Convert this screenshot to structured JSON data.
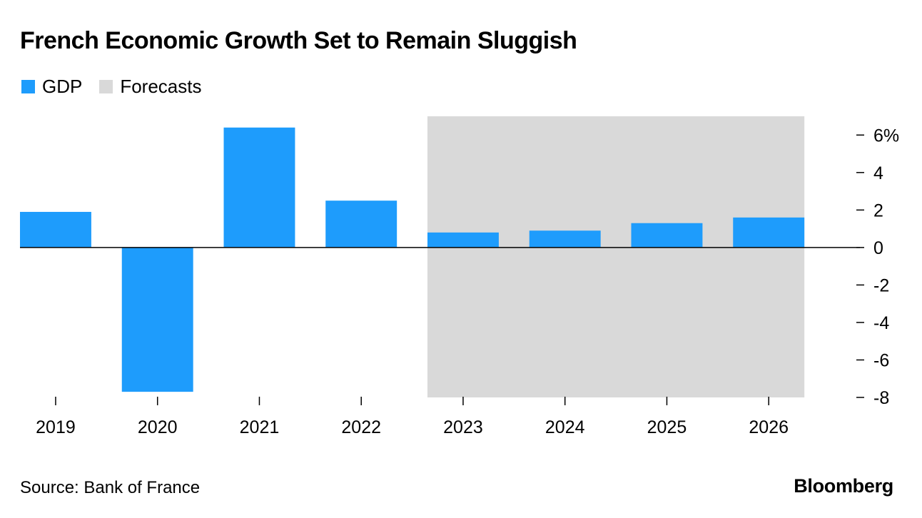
{
  "title": "French Economic Growth Set to Remain Sluggish",
  "legend": [
    {
      "label": "GDP",
      "color": "#1e9cfc"
    },
    {
      "label": "Forecasts",
      "color": "#d9d9d9"
    }
  ],
  "source": "Source: Bank of France",
  "brand": "Bloomberg",
  "chart_data": {
    "type": "bar",
    "title": "French Economic Growth Set to Remain Sluggish",
    "categories": [
      "2019",
      "2020",
      "2021",
      "2022",
      "2023",
      "2024",
      "2025",
      "2026"
    ],
    "series": [
      {
        "name": "GDP",
        "values": [
          1.9,
          -7.7,
          6.4,
          2.5,
          0.8,
          0.9,
          1.3,
          1.6
        ],
        "color": "#1e9cfc"
      }
    ],
    "forecast_start": "2023",
    "forecast_end": "2026",
    "forecast_color": "#d9d9d9",
    "ylim": [
      -8,
      7
    ],
    "yticks": [
      6,
      4,
      2,
      0,
      -2,
      -4,
      -6,
      -8
    ],
    "ytick_labels": [
      "6%",
      "4",
      "2",
      "0",
      "-2",
      "-4",
      "-6",
      "-8"
    ],
    "xlabel": "",
    "ylabel": "",
    "axis_position": "right"
  }
}
